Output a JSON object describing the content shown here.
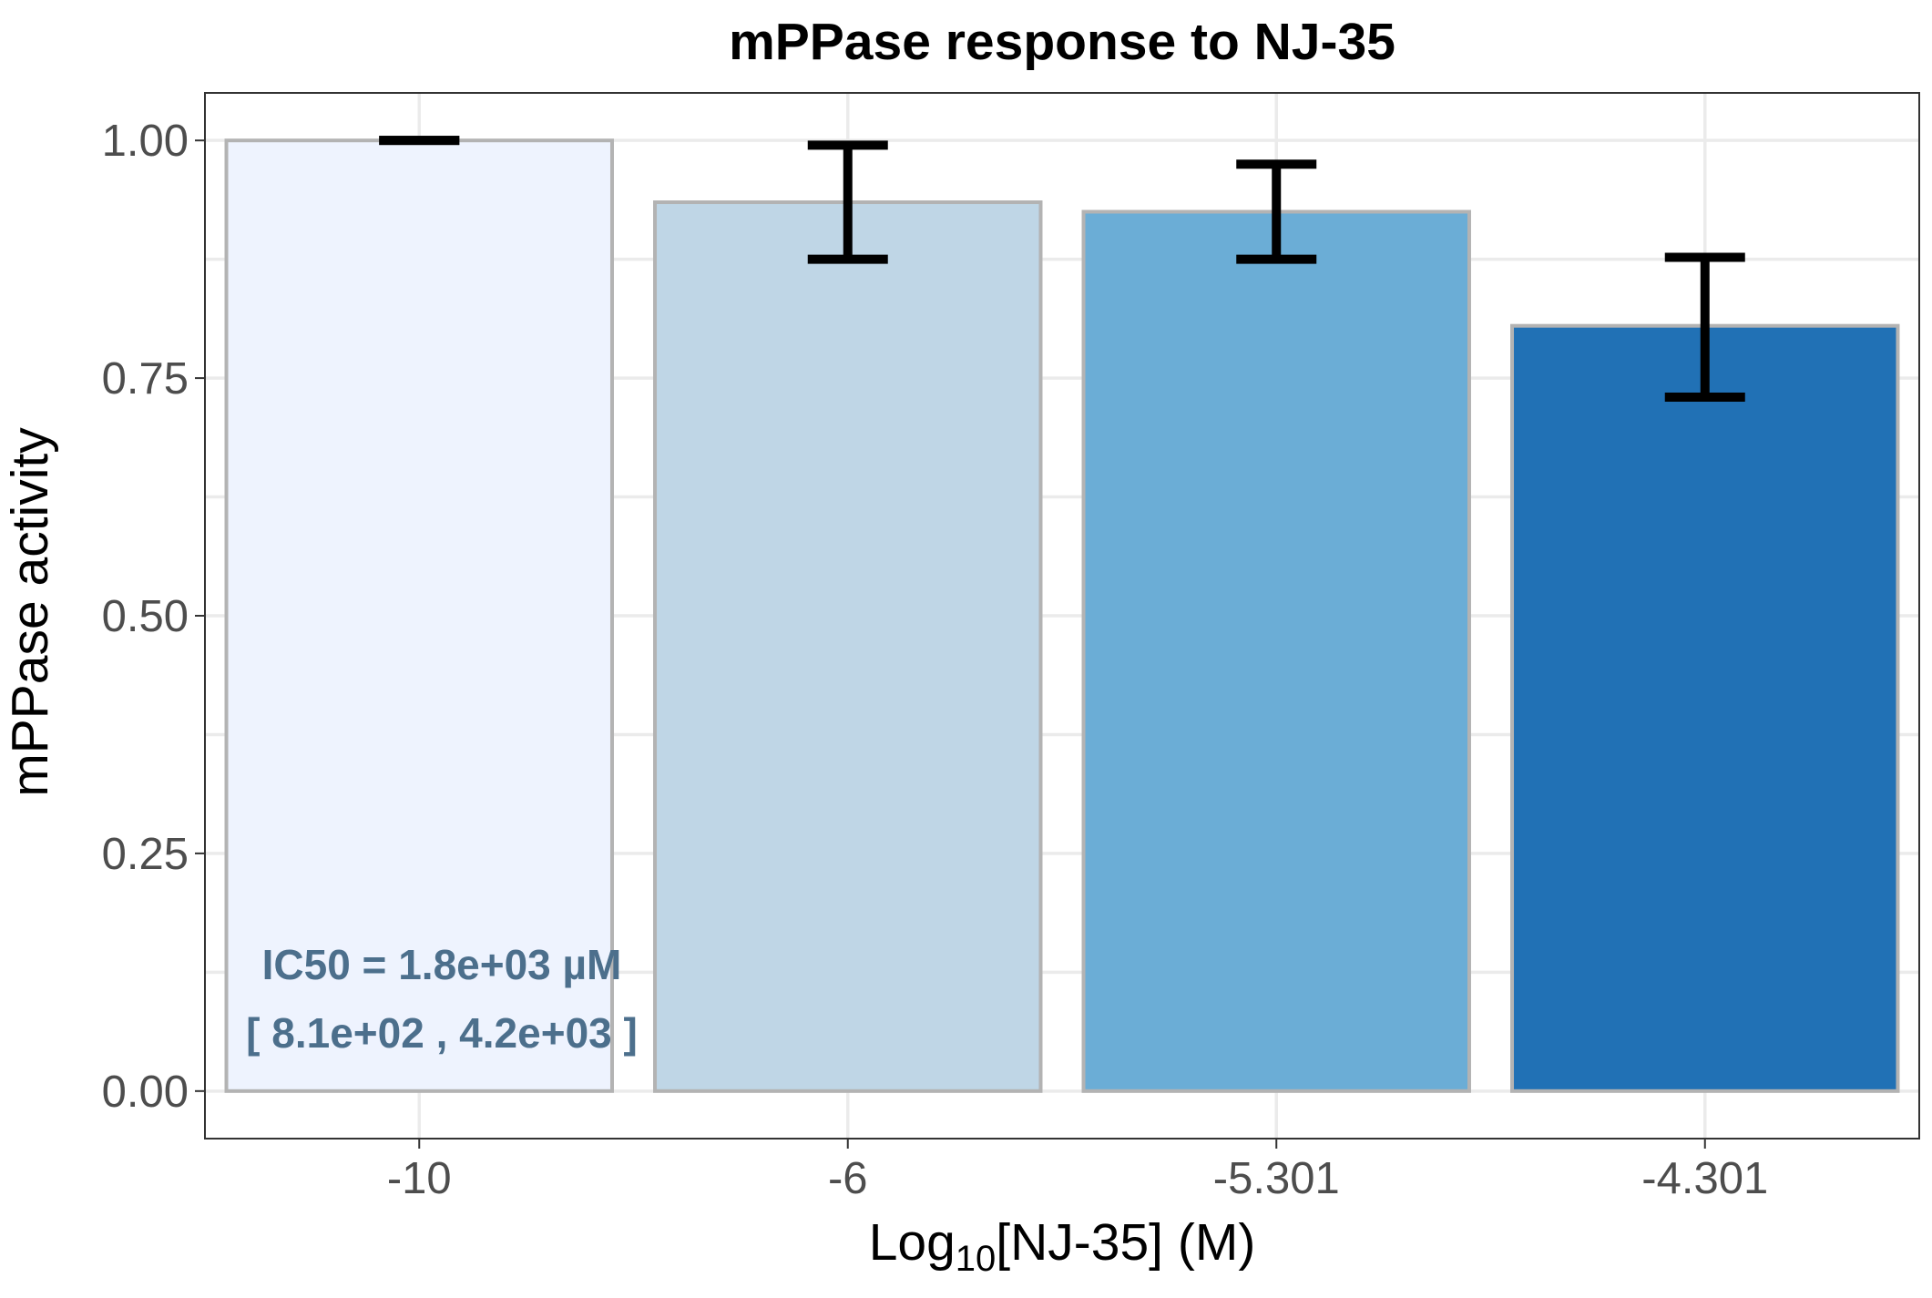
{
  "chart_data": {
    "type": "bar",
    "title": "mPPase response to NJ-35",
    "xlabel": {
      "main": "Log",
      "sub": "10",
      "rest": "[NJ-35] (M)"
    },
    "ylabel": "mPPase activity",
    "categories": [
      "-10",
      "-6",
      "-5.301",
      "-4.301"
    ],
    "values": [
      1.0,
      0.935,
      0.925,
      0.805
    ],
    "error_low": [
      1.0,
      0.875,
      0.875,
      0.73
    ],
    "error_high": [
      1.0,
      0.995,
      0.975,
      0.877
    ],
    "bar_colors": [
      "#eef3fe",
      "#bfd6e6",
      "#6badd6",
      "#2171b5"
    ],
    "ylim": [
      -0.05,
      1.05
    ],
    "yticks": [
      "0.00",
      "0.25",
      "0.50",
      "0.75",
      "1.00"
    ],
    "grid": true,
    "legend": "none",
    "annotations": {
      "ic50": "IC50 = 1.8e+03 µM",
      "ci": "[ 8.1e+02 , 4.2e+03 ]",
      "color": "#4c6f8c"
    }
  }
}
